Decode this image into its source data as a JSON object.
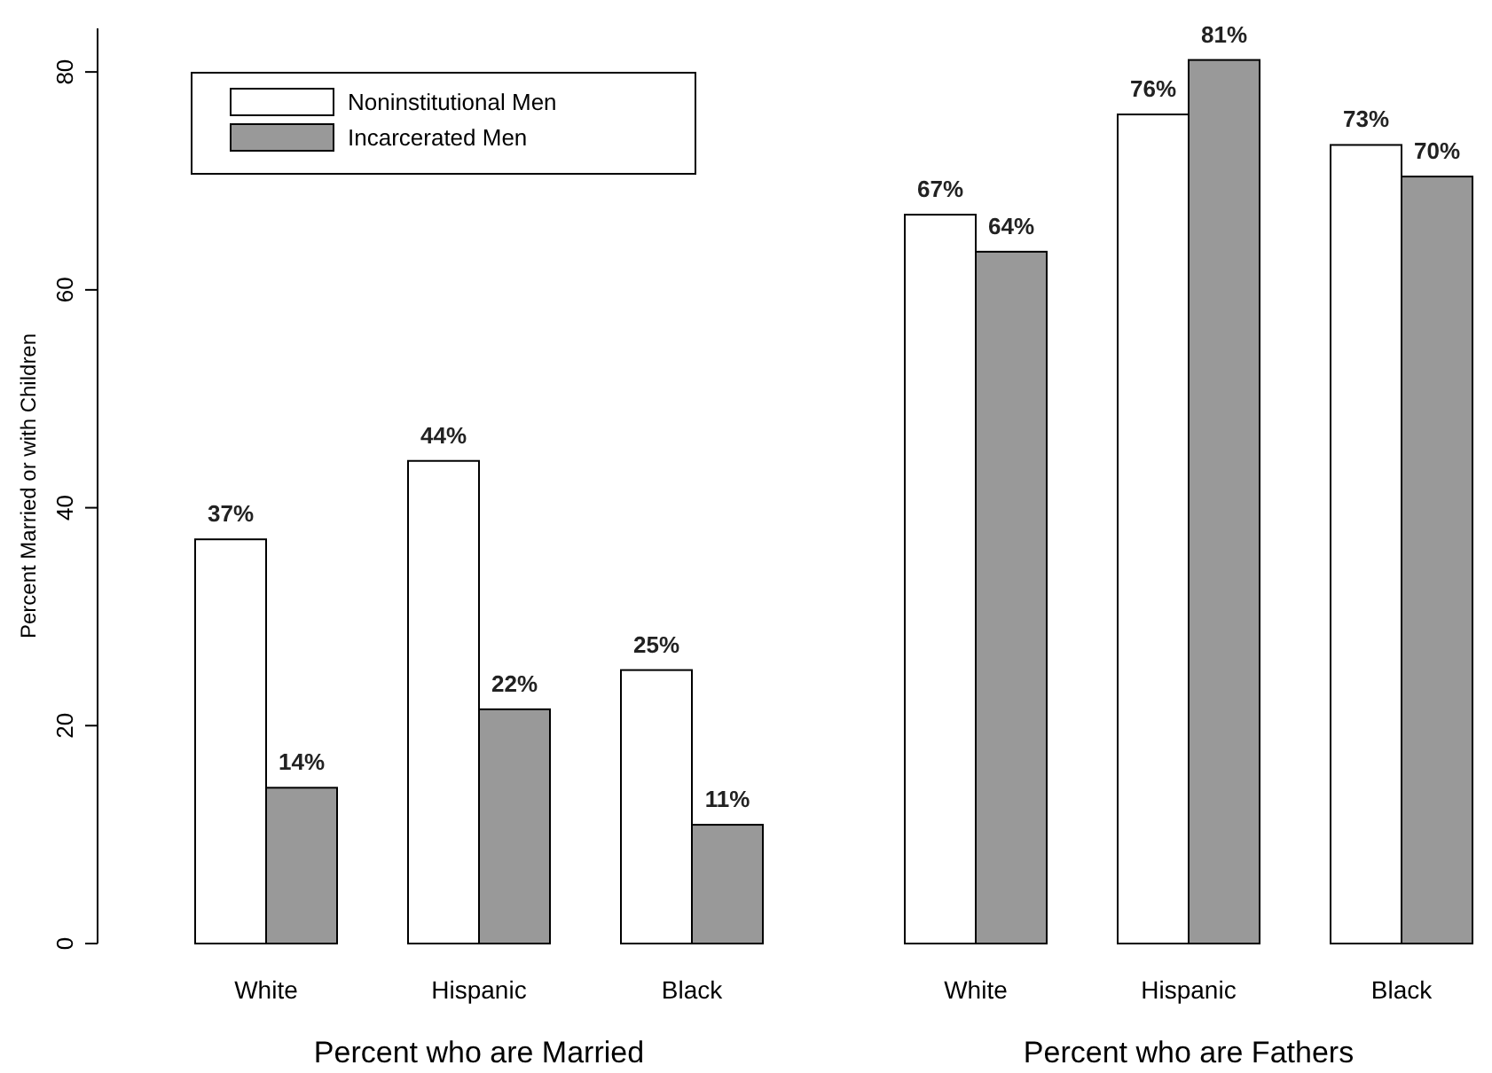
{
  "chart_data": {
    "type": "bar",
    "ylabel": "Percent Married or with Children",
    "categories": [
      "White",
      "Hispanic",
      "Black",
      null,
      "White",
      "Hispanic",
      "Black"
    ],
    "series": [
      {
        "name": "Noninstitutional Men",
        "color": "#ffffff",
        "values": [
          37.1,
          44.3,
          25.1,
          null,
          66.9,
          76.1,
          73.3
        ],
        "value_labels": [
          "37%",
          "44%",
          "25%",
          null,
          "67%",
          "76%",
          "73%"
        ]
      },
      {
        "name": "Incarcerated Men",
        "color": "#999999",
        "values": [
          14.3,
          21.5,
          10.9,
          null,
          63.5,
          81.1,
          70.4
        ],
        "value_labels": [
          "14%",
          "22%",
          "11%",
          null,
          "64%",
          "81%",
          "70%"
        ]
      }
    ],
    "ylim": [
      0,
      84
    ],
    "yticks": [
      0,
      20,
      40,
      60,
      80
    ],
    "grid": false,
    "legend": "top left",
    "annotations": [
      "Percent who are Married",
      "Percent who are Fathers"
    ]
  }
}
